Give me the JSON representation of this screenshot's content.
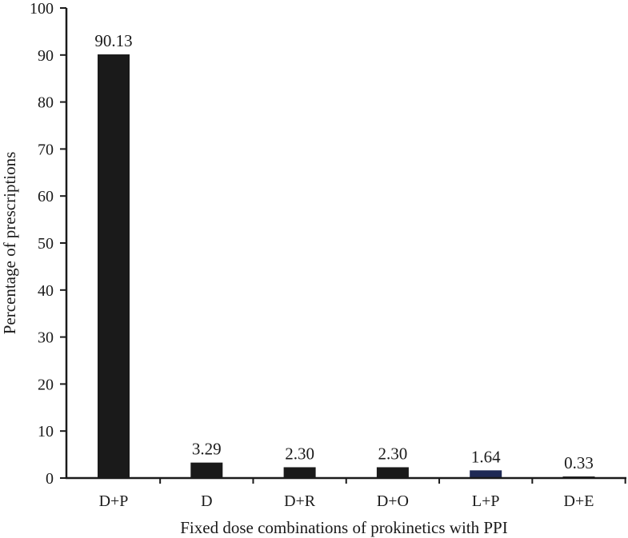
{
  "chart_data": {
    "type": "bar",
    "categories": [
      "D+P",
      "D",
      "D+R",
      "D+O",
      "L+P",
      "D+E"
    ],
    "values": [
      90.13,
      3.29,
      2.3,
      2.3,
      1.64,
      0.33
    ],
    "data_labels": [
      "90.13",
      "3.29",
      "2.30",
      "2.30",
      "1.64",
      "0.33"
    ],
    "bar_colors": [
      "#1a1a1a",
      "#1a1a1a",
      "#1a1a1a",
      "#1a1a1a",
      "#1f2a55",
      "#1a1a1a"
    ],
    "title": "",
    "xlabel": "Fixed dose combinations of prokinetics with PPI",
    "ylabel": "Percentage of  prescriptions",
    "ylim": [
      0,
      100
    ],
    "yticks": [
      0,
      10,
      20,
      30,
      40,
      50,
      60,
      70,
      80,
      90,
      100
    ],
    "grid": false,
    "legend": "none"
  }
}
